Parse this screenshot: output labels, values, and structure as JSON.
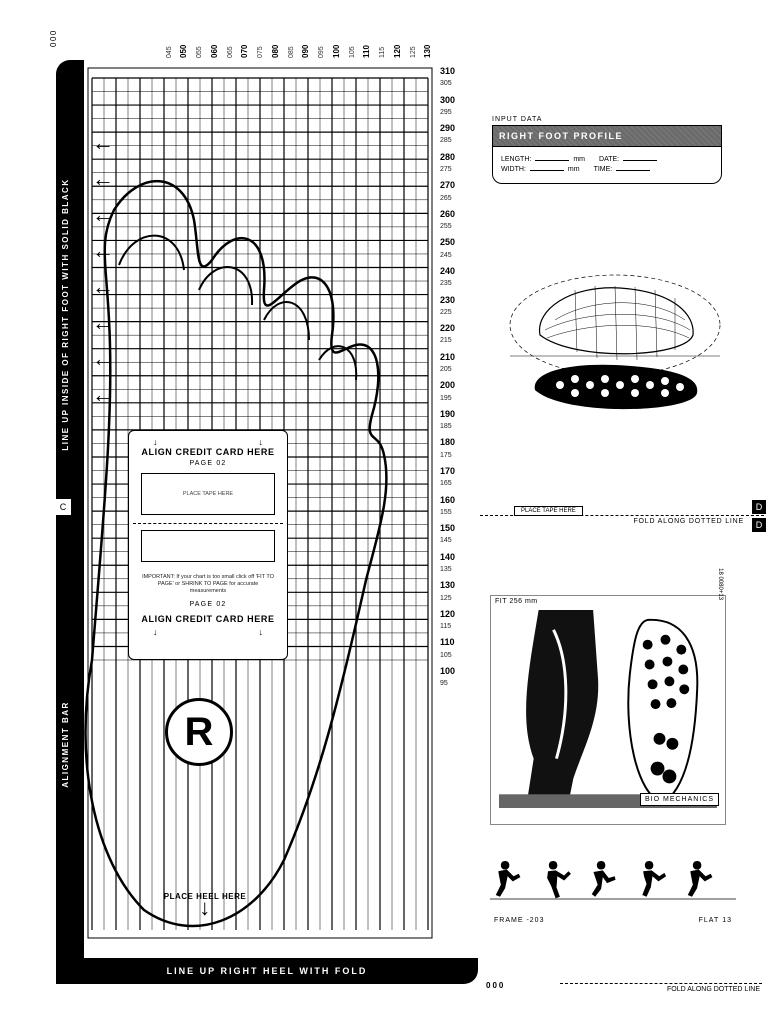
{
  "origin_label": "000",
  "alignment_bar": {
    "top_text": "LINE UP INSIDE OF RIGHT FOOT WITH SOLID BLACK",
    "bottom_text": "ALIGNMENT   BAR"
  },
  "heel_strip_text": "LINE UP RIGHT HEEL WITH FOLD",
  "top_scale": {
    "major": [
      "050",
      "060",
      "070",
      "080",
      "090",
      "100",
      "110",
      "120",
      "130"
    ],
    "minor": [
      "045",
      "055",
      "065",
      "075",
      "085",
      "095",
      "105",
      "115",
      "125"
    ]
  },
  "right_scale": {
    "major_start": 100,
    "major_end": 310,
    "major_step": 10,
    "minor_offset": 5,
    "bottom_label": "95"
  },
  "arrows_count": 8,
  "credit_card": {
    "header_top": "ALIGN CREDIT CARD HERE",
    "page_label": "PAGE 02",
    "slot_text": "PLACE TAPE HERE",
    "important": "IMPORTANT: If your chart is too small click off 'FIT TO PAGE' or SHRINK TO PAGE for accurate measurements",
    "header_bottom": "ALIGN CREDIT CARD HERE"
  },
  "foot_marker": "R",
  "heel_label": "PLACE HEEL HERE",
  "profile_panel": {
    "intro": "INPUT DATA",
    "banner": "RIGHT  FOOT  PROFILE",
    "fields": {
      "length_label": "LENGTH:",
      "length_unit": "mm",
      "width_label": "WIDTH:",
      "width_unit": "mm",
      "date_label": "DATE:",
      "time_label": "TIME:"
    }
  },
  "fold_mid": {
    "tape": "PLACE TAPE HERE",
    "text": "FOLD ALONG DOTTED LINE",
    "mark": "D"
  },
  "c_mark": "C",
  "biomech": {
    "header": "FIT 256 mm",
    "side_code": "18 0080+13",
    "badge": "BIO MECHANICS"
  },
  "runners": {
    "frame_label": "FRAME",
    "frame_val": "-203",
    "flat_label": "FLAT",
    "flat_val": "13"
  },
  "bottom_right_000": "000",
  "fold_bottom": "FOLD ALONG DOTTED LINE",
  "colors": {
    "ink": "#000000",
    "bg": "#ffffff",
    "grey": "#6b6b6b"
  }
}
